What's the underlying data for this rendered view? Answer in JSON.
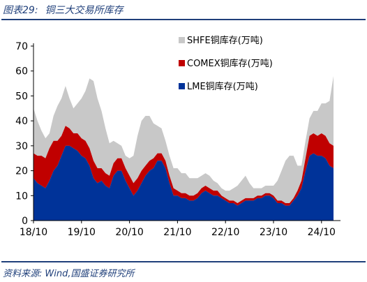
{
  "figure": {
    "number": "图表29:",
    "title": "铜三大交易所库存",
    "source_label": "资料来源:",
    "source_text": "Wind,国盛证券研究所"
  },
  "colors": {
    "shfe": "#c8c8c8",
    "comex": "#c00000",
    "lme": "#003399",
    "title": "#1f3f7a"
  },
  "chart_data": {
    "type": "area",
    "stacked": true,
    "title": "",
    "xlabel": "",
    "ylabel": "",
    "ylim": [
      0,
      70
    ],
    "yticks": [
      0,
      10,
      20,
      30,
      40,
      50,
      60,
      70
    ],
    "xticks": [
      "18/10",
      "19/10",
      "20/10",
      "21/10",
      "22/10",
      "23/10",
      "24/10"
    ],
    "x_range": [
      "2018-10",
      "2025-01"
    ],
    "legend_position": "top-right",
    "grid": false,
    "x": [
      "2018-10",
      "2018-11",
      "2018-12",
      "2019-01",
      "2019-02",
      "2019-03",
      "2019-04",
      "2019-05",
      "2019-06",
      "2019-07",
      "2019-08",
      "2019-09",
      "2019-10",
      "2019-11",
      "2019-12",
      "2020-01",
      "2020-02",
      "2020-03",
      "2020-04",
      "2020-05",
      "2020-06",
      "2020-07",
      "2020-08",
      "2020-09",
      "2020-10",
      "2020-11",
      "2020-12",
      "2021-01",
      "2021-02",
      "2021-03",
      "2021-04",
      "2021-05",
      "2021-06",
      "2021-07",
      "2021-08",
      "2021-09",
      "2021-10",
      "2021-11",
      "2021-12",
      "2022-01",
      "2022-02",
      "2022-03",
      "2022-04",
      "2022-05",
      "2022-06",
      "2022-07",
      "2022-08",
      "2022-09",
      "2022-10",
      "2022-11",
      "2022-12",
      "2023-01",
      "2023-02",
      "2023-03",
      "2023-04",
      "2023-05",
      "2023-06",
      "2023-07",
      "2023-08",
      "2023-09",
      "2023-10",
      "2023-11",
      "2023-12",
      "2024-01",
      "2024-02",
      "2024-03",
      "2024-04",
      "2024-05",
      "2024-06",
      "2024-07",
      "2024-08",
      "2024-09",
      "2024-10",
      "2024-11",
      "2024-12",
      "2025-01"
    ],
    "series": [
      {
        "name": "LME铜库存(万吨)",
        "color": "#003399",
        "values": [
          17,
          15,
          14,
          13,
          16,
          20,
          22,
          26,
          30,
          30,
          29,
          28,
          26,
          25,
          22,
          17,
          15,
          16,
          14,
          13,
          18,
          20,
          20,
          16,
          13,
          10,
          12,
          15,
          18,
          20,
          21,
          24,
          24,
          21,
          15,
          10,
          10,
          9,
          9,
          8,
          8,
          9,
          11,
          12,
          11,
          10,
          10,
          9,
          8,
          7,
          7,
          6,
          7,
          8,
          8,
          8,
          9,
          9,
          10,
          10,
          9,
          7,
          7,
          6,
          6,
          8,
          10,
          13,
          20,
          26,
          27,
          26,
          26,
          25,
          22,
          21
        ]
      },
      {
        "name": "COMEX铜库存(万吨)",
        "color": "#c00000",
        "values": [
          10,
          11,
          12,
          12,
          13,
          12,
          10,
          8,
          8,
          7,
          6,
          7,
          7,
          7,
          7,
          7,
          6,
          5,
          5,
          5,
          5,
          5,
          5,
          5,
          5,
          5,
          5,
          5,
          4,
          4,
          4,
          3,
          3,
          3,
          3,
          3,
          2,
          2,
          2,
          2,
          2,
          2,
          2,
          2,
          2,
          2,
          2,
          1,
          1,
          1,
          1,
          1,
          1,
          1,
          1,
          1,
          1,
          1,
          1,
          1,
          1,
          1,
          1,
          1,
          1,
          1,
          2,
          3,
          5,
          8,
          8,
          8,
          9,
          9,
          9,
          9
        ]
      },
      {
        "name": "SHFE铜库存(万吨)",
        "color": "#c8c8c8",
        "values": [
          18,
          14,
          10,
          8,
          6,
          10,
          14,
          15,
          16,
          12,
          10,
          12,
          16,
          20,
          28,
          32,
          28,
          23,
          18,
          13,
          9,
          6,
          5,
          5,
          7,
          11,
          17,
          20,
          20,
          18,
          14,
          11,
          10,
          8,
          8,
          8,
          9,
          8,
          8,
          7,
          7,
          6,
          5,
          5,
          5,
          4,
          3,
          3,
          3,
          4,
          5,
          7,
          8,
          9,
          6,
          4,
          3,
          3,
          3,
          3,
          4,
          8,
          12,
          17,
          19,
          17,
          10,
          6,
          7,
          7,
          9,
          10,
          12,
          13,
          17,
          28
        ]
      }
    ]
  }
}
